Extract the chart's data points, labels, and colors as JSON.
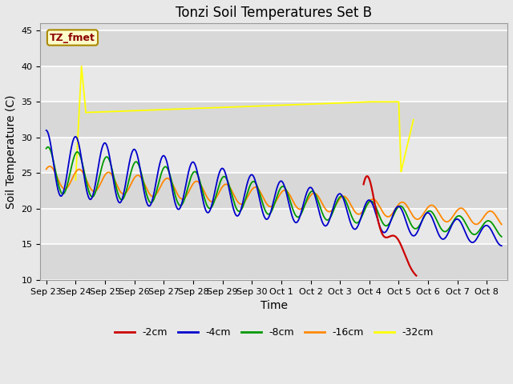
{
  "title": "Tonzi Soil Temperatures Set B",
  "xlabel": "Time",
  "ylabel": "Soil Temperature (C)",
  "ylim": [
    10,
    46
  ],
  "yticks": [
    10,
    15,
    20,
    25,
    30,
    35,
    40,
    45
  ],
  "legend_label": "TZ_fmet",
  "series_colors": {
    "-2cm": "#cc0000",
    "-4cm": "#0000cc",
    "-8cm": "#009900",
    "-16cm": "#ff8800",
    "-32cm": "#ffff00"
  },
  "fig_bg_color": "#e8e8e8",
  "plot_bg_color": "#e0e0e0",
  "grid_color": "#ffffff",
  "title_fontsize": 12,
  "axis_label_fontsize": 10,
  "tick_fontsize": 8,
  "x_tick_labels": [
    "Sep 23",
    "Sep 24",
    "Sep 25",
    "Sep 26",
    "Sep 27",
    "Sep 28",
    "Sep 29",
    "Sep 30",
    "Oct 1",
    "Oct 2",
    "Oct 3",
    "Oct 4",
    "Oct 5",
    "Oct 6",
    "Oct 7",
    "Oct 8"
  ]
}
